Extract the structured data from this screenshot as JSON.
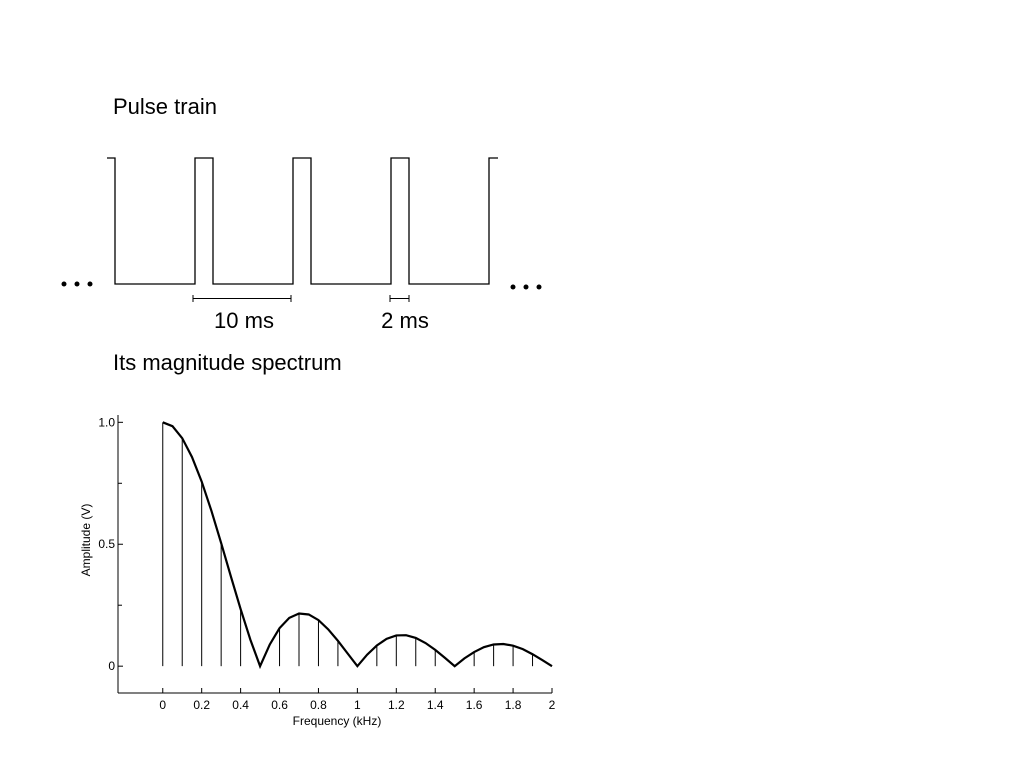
{
  "diagram": {
    "title": "Pulse train",
    "period_label": "10 ms",
    "width_label": "2 ms"
  },
  "spectrum_title": "Its magnitude spectrum",
  "chart_data": {
    "type": "stem",
    "x_label": "Frequency (kHz)",
    "y_label": "Amplitude (V)",
    "xlim": [
      -0.23,
      2
    ],
    "ylim": [
      -0.11,
      1.03
    ],
    "xticks": [
      0,
      0.2,
      0.4,
      0.6,
      0.8,
      1,
      1.2,
      1.4,
      1.6,
      1.8,
      2
    ],
    "yticks": [
      0,
      0.5,
      {
        "value": 1,
        "label": "1.0"
      }
    ],
    "yminor": [
      0.25,
      0.75
    ],
    "color": "#000000",
    "series": [
      {
        "type": "stem",
        "x": [
          0,
          0.1,
          0.2,
          0.3,
          0.4,
          0.5,
          0.6,
          0.7,
          0.8,
          0.9,
          1.0,
          1.1,
          1.2,
          1.3,
          1.4,
          1.5,
          1.6,
          1.7,
          1.8,
          1.9
        ],
        "values": [
          1,
          0.935,
          0.757,
          0.505,
          0.234,
          0,
          0.156,
          0.216,
          0.189,
          0.104,
          0,
          0.085,
          0.126,
          0.116,
          0.067,
          0,
          0.058,
          0.089,
          0.084,
          0.049
        ]
      },
      {
        "type": "line",
        "x": [
          0,
          0.05,
          0.1,
          0.15,
          0.2,
          0.25,
          0.3,
          0.35,
          0.4,
          0.45,
          0.5,
          0.55,
          0.6,
          0.65,
          0.7,
          0.75,
          0.8,
          0.85,
          0.9,
          0.95,
          1.0,
          1.05,
          1.1,
          1.15,
          1.2,
          1.25,
          1.3,
          1.35,
          1.4,
          1.45,
          1.5,
          1.55,
          1.6,
          1.65,
          1.7,
          1.75,
          1.8,
          1.85,
          1.9,
          1.95,
          2.0
        ],
        "values": [
          1,
          0.984,
          0.935,
          0.858,
          0.757,
          0.637,
          0.505,
          0.368,
          0.234,
          0.109,
          0,
          0.089,
          0.156,
          0.198,
          0.216,
          0.212,
          0.189,
          0.151,
          0.104,
          0.052,
          0,
          0.047,
          0.085,
          0.112,
          0.126,
          0.127,
          0.116,
          0.095,
          0.067,
          0.034,
          0,
          0.032,
          0.058,
          0.078,
          0.089,
          0.091,
          0.084,
          0.07,
          0.049,
          0.025,
          0
        ]
      }
    ]
  }
}
